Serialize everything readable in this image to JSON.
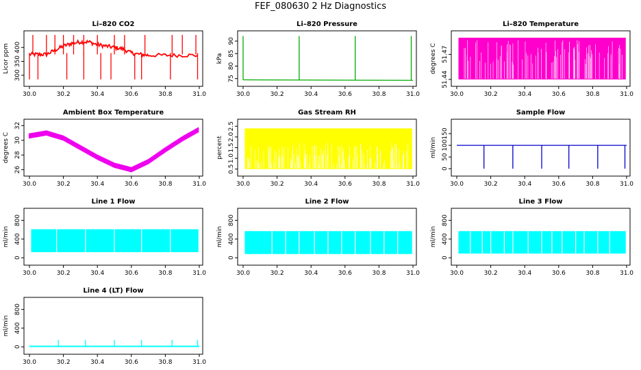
{
  "title": "FEF_080630  2 Hz Diagnostics",
  "chart_data": [
    {
      "name": "co2",
      "type": "line",
      "title": "Li–820 CO2",
      "ylabel": "Licor ppm",
      "color": "#ff0000",
      "xlim": [
        30.0,
        31.0
      ],
      "ylim": [
        270,
        450
      ],
      "xticks": [
        "30.0",
        "30.2",
        "30.4",
        "30.6",
        "30.8",
        "31.0"
      ],
      "yticks": [
        "300",
        "350",
        "400"
      ],
      "series": [
        {
          "x": [
            30.0,
            30.05,
            30.1,
            30.15,
            30.2,
            30.25,
            30.3,
            30.35,
            30.4,
            30.45,
            30.5,
            30.55,
            30.6,
            30.65,
            30.7,
            30.8,
            30.9,
            31.0
          ],
          "y": [
            375,
            375,
            375,
            390,
            405,
            415,
            420,
            420,
            410,
            405,
            400,
            395,
            380,
            375,
            372,
            372,
            372,
            372
          ]
        }
      ],
      "spikes_up": [
        30.02,
        30.1,
        30.15,
        30.2,
        30.26,
        30.32,
        30.4,
        30.5,
        30.56,
        30.68,
        30.84,
        30.9,
        30.98
      ],
      "spikes_down": [
        30.0,
        30.05,
        30.22,
        30.32,
        30.42,
        30.48,
        30.62,
        30.66,
        30.83,
        30.99
      ]
    },
    {
      "name": "pressure",
      "type": "line",
      "title": "Li–820 Pressure",
      "ylabel": "kPa",
      "color": "#00aa00",
      "xlim": [
        30.0,
        31.0
      ],
      "ylim": [
        73,
        93
      ],
      "xticks": [
        "30.0",
        "30.2",
        "30.4",
        "30.6",
        "30.8",
        "31.0"
      ],
      "yticks": [
        "75",
        "80",
        "85",
        "90"
      ],
      "series": [
        {
          "x": [
            30.0,
            31.0
          ],
          "y": [
            74.5,
            74.3
          ]
        }
      ],
      "spikes_up": [
        30.0,
        30.33,
        30.66,
        30.99
      ]
    },
    {
      "name": "licor-temp",
      "type": "area",
      "title": "Li–820 Temperature",
      "ylabel": "degrees C",
      "color": "#ff00cc",
      "xlim": [
        30.0,
        31.0
      ],
      "ylim": [
        51.435,
        51.495
      ],
      "xticks": [
        "30.0",
        "30.2",
        "30.4",
        "30.6",
        "30.8",
        "31.0"
      ],
      "yticks": [
        "51.44",
        "51.47"
      ],
      "band": [
        51.44,
        51.49
      ]
    },
    {
      "name": "box-temp",
      "type": "line",
      "title": "Ambient Box Temperature",
      "ylabel": "degrees C",
      "color": "#ee00ee",
      "xlim": [
        30.0,
        31.0
      ],
      "ylim": [
        25.5,
        32.5
      ],
      "xticks": [
        "30.0",
        "30.2",
        "30.4",
        "30.6",
        "30.8",
        "31.0"
      ],
      "yticks": [
        "26",
        "28",
        "30",
        "32"
      ],
      "series": [
        {
          "x": [
            30.0,
            30.1,
            30.2,
            30.3,
            30.4,
            30.5,
            30.6,
            30.7,
            30.8,
            30.9,
            31.0
          ],
          "y": [
            30.6,
            31.0,
            30.3,
            29.0,
            27.7,
            26.6,
            26.0,
            27.1,
            28.7,
            30.2,
            31.5
          ]
        }
      ]
    },
    {
      "name": "rh",
      "type": "area",
      "title": "Gas Stream RH",
      "ylabel": "percent",
      "color": "#ffff00",
      "xlim": [
        30.0,
        31.0
      ],
      "ylim": [
        0.3,
        2.7
      ],
      "xticks": [
        "30.0",
        "30.2",
        "30.4",
        "30.6",
        "30.8",
        "31.0"
      ],
      "yticks": [
        "0.5",
        "1.0",
        "1.5",
        "2.0",
        "2.5"
      ],
      "band": [
        0.5,
        2.4
      ]
    },
    {
      "name": "sample-flow",
      "type": "line",
      "title": "Sample Flow",
      "ylabel": "ml/min",
      "color": "#0000cc",
      "xlim": [
        30.0,
        31.0
      ],
      "ylim": [
        -20,
        200
      ],
      "xticks": [
        "30.0",
        "30.2",
        "30.4",
        "30.6",
        "30.8",
        "31.0"
      ],
      "yticks": [
        "0",
        "50",
        "100",
        "150"
      ],
      "series": [
        {
          "x": [
            30.0,
            31.0
          ],
          "y": [
            100,
            100
          ]
        }
      ],
      "spikes_down": [
        30.16,
        30.33,
        30.5,
        30.66,
        30.83,
        30.99
      ]
    },
    {
      "name": "line1-flow",
      "type": "area",
      "title": "Line 1 Flow",
      "ylabel": "ml/min",
      "color": "#00ffff",
      "xlim": [
        30.0,
        31.0
      ],
      "ylim": [
        -100,
        1000
      ],
      "xticks": [
        "30.0",
        "30.2",
        "30.4",
        "30.6",
        "30.8",
        "31.0"
      ],
      "yticks": [
        "0",
        "400",
        "800"
      ],
      "band": [
        120,
        610
      ],
      "gaps": [
        30.16,
        30.33,
        30.5,
        30.66,
        30.83
      ]
    },
    {
      "name": "line2-flow",
      "type": "area",
      "title": "Line 2 Flow",
      "ylabel": "ml/min",
      "color": "#00ffff",
      "xlim": [
        30.0,
        31.0
      ],
      "ylim": [
        -100,
        1000
      ],
      "xticks": [
        "30.0",
        "30.2",
        "30.4",
        "30.6",
        "30.8",
        "31.0"
      ],
      "yticks": [
        "0",
        "400",
        "800"
      ],
      "band": [
        80,
        570
      ],
      "gaps": [
        30.17,
        30.25,
        30.33,
        30.42,
        30.5,
        30.58,
        30.66,
        30.75,
        30.83,
        30.91
      ]
    },
    {
      "name": "line3-flow",
      "type": "area",
      "title": "Line 3 Flow",
      "ylabel": "ml/min",
      "color": "#00ffff",
      "xlim": [
        30.0,
        31.0
      ],
      "ylim": [
        -100,
        1000
      ],
      "xticks": [
        "30.0",
        "30.2",
        "30.4",
        "30.6",
        "30.8",
        "31.0"
      ],
      "yticks": [
        "0",
        "400",
        "800"
      ],
      "band": [
        90,
        570
      ],
      "gaps": [
        30.08,
        30.15,
        30.2,
        30.28,
        30.33,
        30.42,
        30.5,
        30.56,
        30.62,
        30.7,
        30.75,
        30.83,
        30.9
      ]
    },
    {
      "name": "line4-flow",
      "type": "line",
      "title": "Line 4 (LT) Flow",
      "ylabel": "ml/min",
      "color": "#00ffff",
      "xlim": [
        30.0,
        31.0
      ],
      "ylim": [
        -100,
        1000
      ],
      "xticks": [
        "30.0",
        "30.2",
        "30.4",
        "30.6",
        "30.8",
        "31.0"
      ],
      "yticks": [
        "0",
        "400",
        "800"
      ],
      "series": [
        {
          "x": [
            30.0,
            31.0
          ],
          "y": [
            10,
            10
          ]
        }
      ],
      "spikes_up": [
        30.17,
        30.33,
        30.5,
        30.66,
        30.84,
        30.99
      ]
    }
  ]
}
